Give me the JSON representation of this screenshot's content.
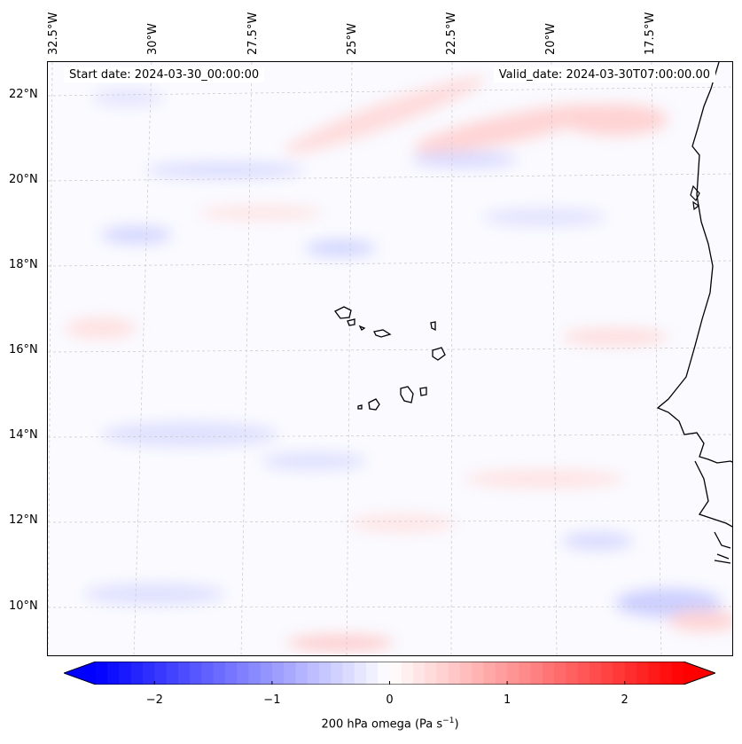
{
  "map": {
    "start_date": "Start date: 2024-03-30_00:00:00",
    "valid_date": "Valid_date: 2024-03-30T07:00:00.00",
    "longitude_labels": [
      "32.5°W",
      "30°W",
      "27.5°W",
      "25°W",
      "22.5°W",
      "20°W",
      "17.5°W"
    ],
    "latitude_labels": [
      "22°N",
      "20°N",
      "18°N",
      "16°N",
      "14°N",
      "12°N",
      "10°N"
    ],
    "colors": {
      "negative": "#0000ff",
      "positive": "#ff0000",
      "neutral": "#ffffff",
      "coastline": "#000000"
    }
  },
  "colorbar": {
    "ticks": [
      "−2",
      "−1",
      "0",
      "1",
      "2"
    ],
    "tick_values": [
      -2,
      -1,
      0,
      1,
      2
    ],
    "range": [
      -2.5,
      2.5
    ],
    "label_main": "200 hPa omega (Pa s",
    "label_sup": "−1",
    "label_end": ")"
  }
}
